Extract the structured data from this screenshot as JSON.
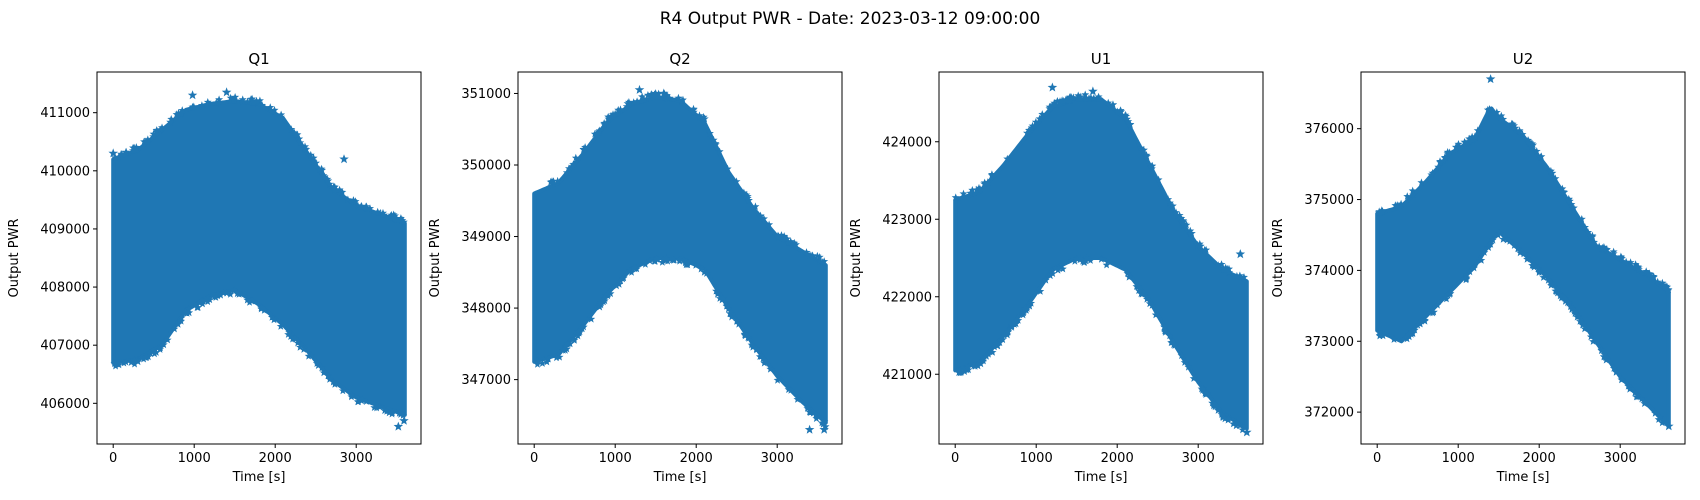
{
  "figure": {
    "title": "R4 Output PWR - Date: 2023-03-12 09:00:00",
    "marker_color": "#1f77b4"
  },
  "chart_data": [
    {
      "type": "scatter",
      "title": "Q1",
      "xlabel": "Time [s]",
      "ylabel": "Output PWR",
      "xlim": [
        -200,
        3800
      ],
      "ylim": [
        405300,
        411700
      ],
      "xticks": [
        0,
        1000,
        2000,
        3000
      ],
      "yticks": [
        406000,
        407000,
        408000,
        409000,
        410000,
        411000
      ],
      "marker": "star",
      "envelope": {
        "x": [
          0,
          300,
          600,
          900,
          1200,
          1500,
          1800,
          2100,
          2400,
          2700,
          3000,
          3300,
          3600
        ],
        "upper": [
          410200,
          410350,
          410700,
          411050,
          411150,
          411200,
          411150,
          410900,
          410300,
          409700,
          409400,
          409250,
          409100
        ],
        "lower": [
          406700,
          406750,
          407000,
          407600,
          407850,
          407950,
          407700,
          407350,
          406900,
          406400,
          406100,
          405950,
          405800
        ]
      },
      "series": [
        {
          "x": [
            0,
            980,
            1400,
            2850,
            3520,
            3590
          ],
          "y": [
            410300,
            411300,
            411350,
            410200,
            405600,
            405700
          ]
        }
      ]
    },
    {
      "type": "scatter",
      "title": "Q2",
      "xlabel": "Time [s]",
      "ylabel": "Output PWR",
      "xlim": [
        -200,
        3800
      ],
      "ylim": [
        346100,
        351300
      ],
      "xticks": [
        0,
        1000,
        2000,
        3000
      ],
      "yticks": [
        347000,
        348000,
        349000,
        350000,
        351000
      ],
      "marker": "star",
      "envelope": {
        "x": [
          0,
          300,
          600,
          900,
          1200,
          1500,
          1800,
          2100,
          2400,
          2700,
          3000,
          3300,
          3600
        ],
        "upper": [
          349600,
          349750,
          350150,
          350600,
          350850,
          350950,
          350900,
          350600,
          349900,
          349400,
          349000,
          348800,
          348600
        ],
        "lower": [
          347250,
          347350,
          347750,
          348200,
          348550,
          348700,
          348700,
          348550,
          348000,
          347500,
          347050,
          346700,
          346400
        ]
      },
      "series": [
        {
          "x": [
            1300,
            1600,
            3400,
            3580
          ],
          "y": [
            351050,
            351000,
            346300,
            346300
          ]
        }
      ]
    },
    {
      "type": "scatter",
      "title": "U1",
      "xlabel": "Time [s]",
      "ylabel": "Output PWR",
      "xlim": [
        -200,
        3800
      ],
      "ylim": [
        420100,
        424900
      ],
      "xticks": [
        0,
        1000,
        2000,
        3000
      ],
      "yticks": [
        421000,
        422000,
        423000,
        424000
      ],
      "marker": "star",
      "envelope": {
        "x": [
          0,
          300,
          600,
          900,
          1200,
          1500,
          1800,
          2100,
          2400,
          2700,
          3000,
          3300,
          3600
        ],
        "upper": [
          423250,
          423350,
          423700,
          424100,
          424450,
          424550,
          424550,
          424300,
          423700,
          423100,
          422650,
          422350,
          422200
        ],
        "lower": [
          421050,
          421150,
          421500,
          421900,
          422350,
          422500,
          422500,
          422350,
          421950,
          421400,
          420900,
          420500,
          420300
        ]
      },
      "series": [
        {
          "x": [
            1200,
            1700,
            3520,
            3600
          ],
          "y": [
            424700,
            424650,
            422550,
            420250
          ]
        }
      ]
    },
    {
      "type": "scatter",
      "title": "U2",
      "xlabel": "Time [s]",
      "ylabel": "Output PWR",
      "xlim": [
        -200,
        3800
      ],
      "ylim": [
        371550,
        376800
      ],
      "xticks": [
        0,
        1000,
        2000,
        3000
      ],
      "yticks": [
        372000,
        373000,
        374000,
        375000,
        376000
      ],
      "marker": "star",
      "envelope": {
        "x": [
          0,
          300,
          600,
          900,
          1200,
          1400,
          1500,
          1800,
          2100,
          2400,
          2700,
          3000,
          3300,
          3600
        ],
        "upper": [
          374800,
          374900,
          375250,
          375650,
          375850,
          376300,
          376150,
          375900,
          375450,
          374900,
          374350,
          374150,
          373950,
          373700
        ],
        "lower": [
          373150,
          373000,
          373350,
          373700,
          374050,
          374400,
          374550,
          374250,
          373900,
          373500,
          373000,
          372500,
          372150,
          371800
        ]
      },
      "series": [
        {
          "x": [
            1400,
            2300,
            2800,
            3600
          ],
          "y": [
            376700,
            375100,
            374300,
            371800
          ]
        }
      ]
    }
  ]
}
